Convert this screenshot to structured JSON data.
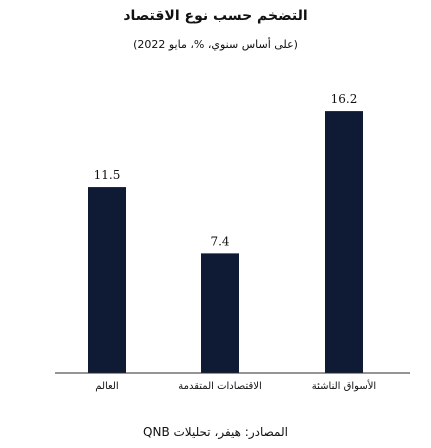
{
  "title": "التضخم حسب نوع الاقتصاد",
  "subtitle": "(على أساس سنوي، %، مايو 2022)",
  "source": "المصادر: هيفر، تحليلات QNB",
  "chart_data": {
    "type": "bar",
    "categories": [
      "العالم",
      "الاقتصادات المتقدمة",
      "الأسواق الناشئة"
    ],
    "values": [
      11.5,
      7.4,
      16.2
    ],
    "value_labels": [
      "11.5",
      "7.4",
      "16.2"
    ],
    "ylim": [
      0,
      18
    ],
    "bar_color": "#0f1a35",
    "axis_color": "#2a2a2a",
    "grid": false,
    "legend": "none"
  }
}
